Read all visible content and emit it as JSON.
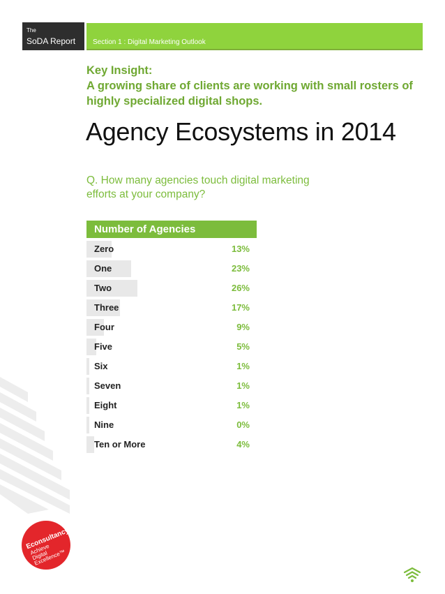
{
  "header": {
    "the": "The",
    "report": "SoDA Report",
    "section": "Section 1 : Digital Marketing Outlook"
  },
  "insight": {
    "label": "Key Insight:",
    "text": "A growing share of clients are working with small rosters of highly specialized digital shops."
  },
  "title": "Agency Ecosystems in 2014",
  "question": "Q. How many agencies touch digital marketing efforts at your company?",
  "table": {
    "header": "Number of Agencies",
    "rows": [
      {
        "label": "Zero",
        "value": "13%",
        "pct": 13
      },
      {
        "label": "One",
        "value": "23%",
        "pct": 23
      },
      {
        "label": "Two",
        "value": "26%",
        "pct": 26
      },
      {
        "label": "Three",
        "value": "17%",
        "pct": 17
      },
      {
        "label": "Four",
        "value": "9%",
        "pct": 9
      },
      {
        "label": "Five",
        "value": "5%",
        "pct": 5
      },
      {
        "label": "Six",
        "value": "1%",
        "pct": 1
      },
      {
        "label": "Seven",
        "value": "1%",
        "pct": 1
      },
      {
        "label": "Eight",
        "value": "1%",
        "pct": 1
      },
      {
        "label": "Nine",
        "value": "0%",
        "pct": 0
      },
      {
        "label": "Ten or More",
        "value": "4%",
        "pct": 4
      }
    ]
  },
  "badge": {
    "brand": "Econsultancy",
    "tagline_1": "Achieve",
    "tagline_2": "Digital",
    "tagline_3": "Excellence™"
  },
  "colors": {
    "green": "#8fd33d",
    "green_text": "#6fa832",
    "dark": "#2e2e2e",
    "red": "#e3262b"
  }
}
